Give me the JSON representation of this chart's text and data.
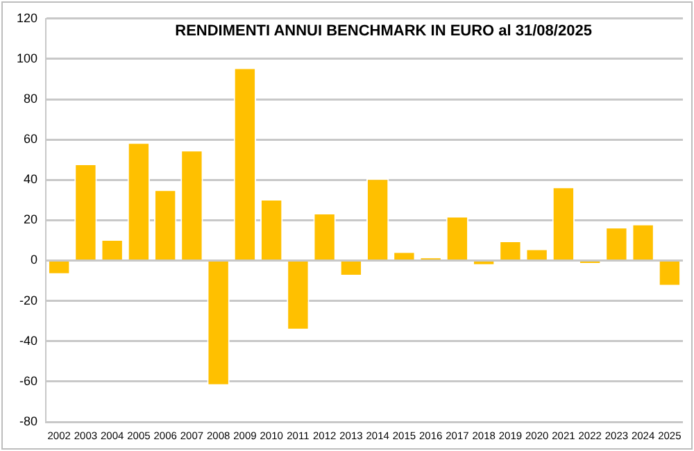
{
  "chart_data": {
    "type": "bar",
    "title": "RENDIMENTI ANNUI BENCHMARK IN EURO al 31/08/2025",
    "categories": [
      "2002",
      "2003",
      "2004",
      "2005",
      "2006",
      "2007",
      "2008",
      "2009",
      "2010",
      "2011",
      "2012",
      "2013",
      "2014",
      "2015",
      "2016",
      "2017",
      "2018",
      "2019",
      "2020",
      "2021",
      "2022",
      "2023",
      "2024",
      "2025"
    ],
    "values": [
      -7,
      48,
      10.5,
      58.6,
      35.2,
      54.8,
      -62,
      95.7,
      30.5,
      -34.5,
      23.6,
      -7.7,
      40.7,
      4.5,
      1.8,
      22,
      -2.5,
      9.8,
      5.9,
      36.6,
      -1.8,
      16.6,
      18.2,
      -12.7
    ],
    "color": "#ffc000",
    "ylim": [
      -80,
      120
    ],
    "yticks": [
      -80,
      -60,
      -40,
      -20,
      0,
      20,
      40,
      60,
      80,
      100,
      120
    ],
    "grid": "y"
  }
}
